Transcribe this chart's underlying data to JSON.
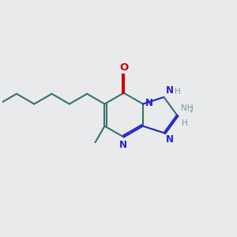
{
  "background_color": "#e8eaec",
  "bond_color": "#3a7070",
  "N_color": "#2222cc",
  "O_color": "#cc0000",
  "H_color": "#7a9a9a",
  "line_width": 1.5,
  "figsize": [
    3.0,
    3.0
  ],
  "dpi": 100,
  "bl": 0.95,
  "fuse_x": 6.05,
  "fuse_y": 5.15,
  "xlim": [
    0.0,
    10.0
  ],
  "ylim": [
    1.0,
    9.0
  ]
}
